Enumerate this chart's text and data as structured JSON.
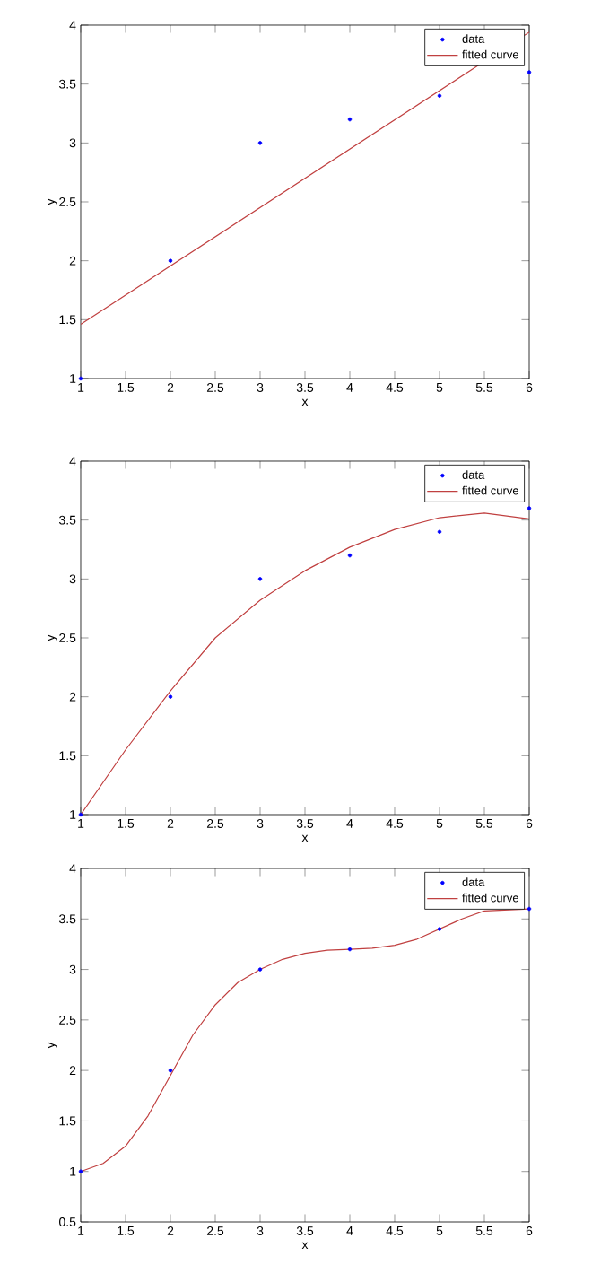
{
  "chart_data": [
    {
      "type": "scatter",
      "xlabel": "x",
      "ylabel": "y",
      "xlim": [
        1,
        6
      ],
      "ylim": [
        1,
        4
      ],
      "xticks": [
        1,
        1.5,
        2,
        2.5,
        3,
        3.5,
        4,
        4.5,
        5,
        5.5,
        6
      ],
      "yticks": [
        1,
        1.5,
        2,
        2.5,
        3,
        3.5,
        4
      ],
      "grid": false,
      "legend": "top right",
      "series": [
        {
          "name": "data",
          "marker": "circle",
          "color": "#0000ff",
          "x": [
            1,
            2,
            3,
            4,
            5,
            6
          ],
          "values": [
            1,
            2,
            3,
            3.2,
            3.4,
            3.6
          ]
        },
        {
          "name": "fitted curve",
          "type": "line",
          "marker": "none",
          "color": "#c04040",
          "x": [
            1,
            6
          ],
          "values": [
            1.46,
            3.94
          ]
        }
      ]
    },
    {
      "type": "scatter",
      "xlabel": "x",
      "ylabel": "y",
      "xlim": [
        1,
        6
      ],
      "ylim": [
        1,
        4
      ],
      "xticks": [
        1,
        1.5,
        2,
        2.5,
        3,
        3.5,
        4,
        4.5,
        5,
        5.5,
        6
      ],
      "yticks": [
        1,
        1.5,
        2,
        2.5,
        3,
        3.5,
        4
      ],
      "grid": false,
      "legend": "top right",
      "series": [
        {
          "name": "data",
          "marker": "circle",
          "color": "#0000ff",
          "x": [
            1,
            2,
            3,
            4,
            5,
            6
          ],
          "values": [
            1,
            2,
            3,
            3.2,
            3.4,
            3.6
          ]
        },
        {
          "name": "fitted curve",
          "type": "line",
          "marker": "none",
          "color": "#c04040",
          "x": [
            1,
            1.5,
            2,
            2.5,
            3,
            3.5,
            4,
            4.5,
            5,
            5.5,
            6
          ],
          "values": [
            1.0,
            1.55,
            2.05,
            2.5,
            2.82,
            3.07,
            3.27,
            3.42,
            3.52,
            3.56,
            3.51
          ]
        }
      ]
    },
    {
      "type": "scatter",
      "xlabel": "x",
      "ylabel": "y",
      "xlim": [
        1,
        6
      ],
      "ylim": [
        0.5,
        4
      ],
      "xticks": [
        1,
        1.5,
        2,
        2.5,
        3,
        3.5,
        4,
        4.5,
        5,
        5.5,
        6
      ],
      "yticks": [
        0.5,
        1,
        1.5,
        2,
        2.5,
        3,
        3.5,
        4
      ],
      "grid": false,
      "legend": "top right",
      "series": [
        {
          "name": "data",
          "marker": "circle",
          "color": "#0000ff",
          "x": [
            1,
            2,
            3,
            4,
            5,
            6
          ],
          "values": [
            1,
            2,
            3,
            3.2,
            3.4,
            3.6
          ]
        },
        {
          "name": "fitted curve",
          "type": "line",
          "marker": "none",
          "color": "#c04040",
          "x": [
            1,
            1.25,
            1.5,
            1.75,
            2,
            2.25,
            2.5,
            2.75,
            3,
            3.25,
            3.5,
            3.75,
            4,
            4.25,
            4.5,
            4.75,
            5,
            5.25,
            5.5,
            5.75,
            6
          ],
          "values": [
            1.0,
            1.08,
            1.25,
            1.55,
            1.95,
            2.35,
            2.65,
            2.87,
            3.0,
            3.1,
            3.16,
            3.19,
            3.2,
            3.21,
            3.24,
            3.3,
            3.4,
            3.5,
            3.58,
            null,
            3.6
          ]
        }
      ]
    }
  ]
}
